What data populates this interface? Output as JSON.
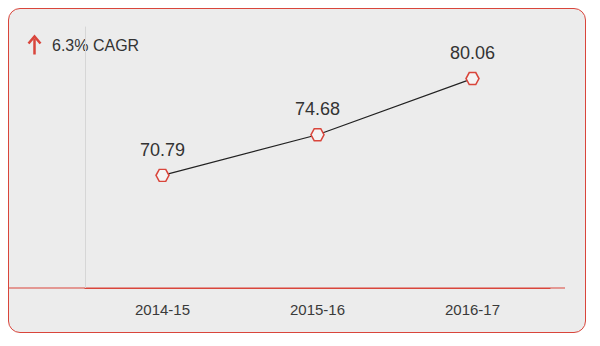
{
  "chart_data": {
    "type": "line",
    "annotation": "6.3% CAGR",
    "categories": [
      "2014-15",
      "2015-16",
      "2016-17"
    ],
    "values": [
      70.79,
      74.68,
      80.06
    ],
    "color": "#d9453b",
    "marker": "hexagon",
    "ylim": [
      60,
      85
    ],
    "grid": false,
    "data_labels": true,
    "tick_labels": "x"
  }
}
